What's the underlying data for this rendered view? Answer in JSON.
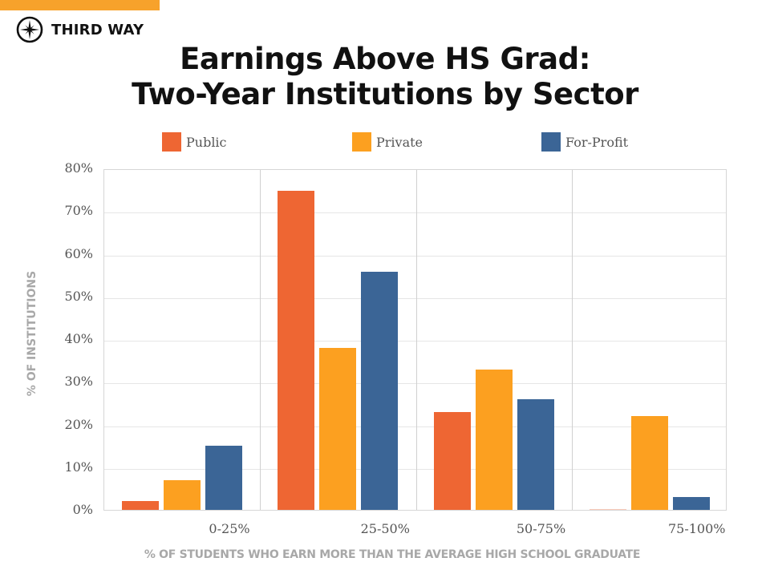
{
  "brand": {
    "name": "THIRD WAY",
    "accent_color": "#f7a22b",
    "icon": "compass-star-icon"
  },
  "title_line1": "Earnings Above HS Grad:",
  "title_line2": "Two-Year Institutions by Sector",
  "legend": [
    {
      "label": "Public",
      "color": "#ee6633"
    },
    {
      "label": "Private",
      "color": "#fca020"
    },
    {
      "label": "For-Profit",
      "color": "#3b6596"
    }
  ],
  "axes": {
    "ylabel": "% OF INSTITUTIONS",
    "xlabel": "% OF STUDENTS WHO EARN MORE THAN THE AVERAGE HIGH SCHOOL GRADUATE",
    "yticks": [
      "0%",
      "10%",
      "20%",
      "30%",
      "40%",
      "50%",
      "60%",
      "70%",
      "80%"
    ],
    "xticks": [
      "0-25%",
      "25-50%",
      "50-75%",
      "75-100%"
    ]
  },
  "chart_data": {
    "type": "bar",
    "title": "Earnings Above HS Grad: Two-Year Institutions by Sector",
    "xlabel": "% OF STUDENTS WHO EARN MORE THAN THE AVERAGE HIGH SCHOOL GRADUATE",
    "ylabel": "% OF INSTITUTIONS",
    "categories": [
      "0-25%",
      "25-50%",
      "50-75%",
      "75-100%"
    ],
    "series": [
      {
        "name": "Public",
        "color": "#ee6633",
        "values": [
          2,
          75,
          23,
          0
        ]
      },
      {
        "name": "Private",
        "color": "#fca020",
        "values": [
          7,
          38,
          33,
          22
        ]
      },
      {
        "name": "For-Profit",
        "color": "#3b6596",
        "values": [
          15,
          56,
          26,
          3
        ]
      }
    ],
    "ylim": [
      0,
      80
    ],
    "yticks": [
      0,
      10,
      20,
      30,
      40,
      50,
      60,
      70,
      80
    ],
    "ytick_format": "percent",
    "grid": {
      "horizontal": true,
      "vertical_category_dividers": true
    },
    "legend_position": "top"
  }
}
